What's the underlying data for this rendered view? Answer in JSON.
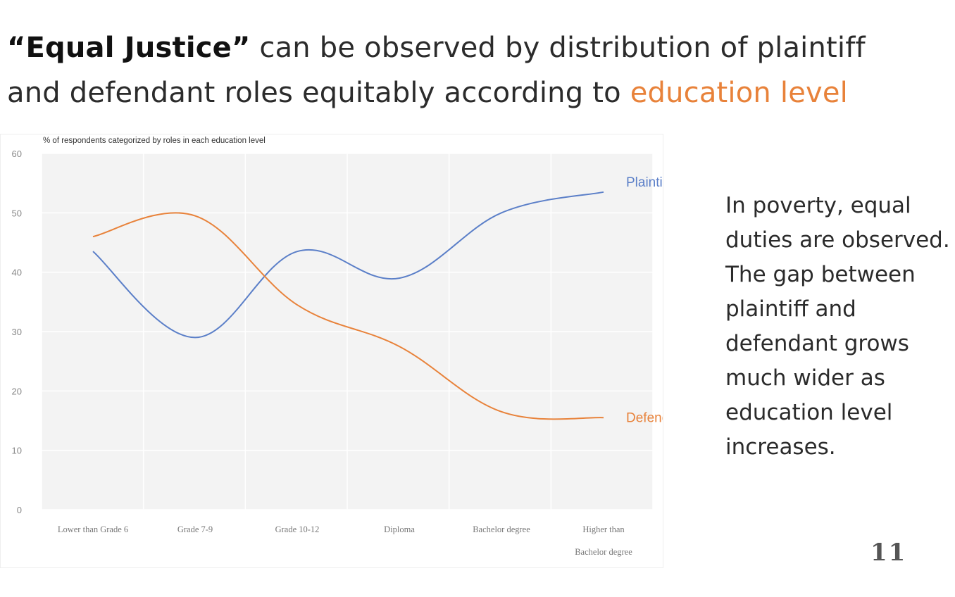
{
  "headline": {
    "part1": "“Equal Justice”",
    "part2": " can be observed by distribution of plaintiff and defendant roles equitably according to ",
    "part3": "education level"
  },
  "note": {
    "lines": [
      "In poverty, equal",
      "duties are observed.",
      "The gap between",
      "plaintiff and",
      "defendant grows",
      "much wider as",
      "education level",
      "increases."
    ]
  },
  "page_number": "11",
  "colors": {
    "plaintiff": "#5b7fc8",
    "defendant": "#e8823a",
    "accent": "#e8823a",
    "plot_bg": "#f3f3f3",
    "grid": "#ffffff"
  },
  "chart_data": {
    "type": "line",
    "title": "% of respondents categorized by roles in each education level",
    "xlabel": "",
    "ylabel": "",
    "ylim": [
      0,
      60
    ],
    "yticks": [
      0,
      10,
      20,
      30,
      40,
      50,
      60
    ],
    "grid": true,
    "smooth": true,
    "categories": [
      [
        "Lower than Grade 6"
      ],
      [
        "Grade 7-9"
      ],
      [
        "Grade 10-12"
      ],
      [
        "Diploma"
      ],
      [
        "Bachelor degree"
      ],
      [
        "Higher than",
        "Bachelor degree"
      ]
    ],
    "series": [
      {
        "name": "Plaintiff",
        "color": "#5b7fc8",
        "values": [
          43.5,
          29,
          43.5,
          39,
          50,
          53.5
        ]
      },
      {
        "name": "Defendant",
        "color": "#e8823a",
        "values": [
          46,
          49.5,
          34.5,
          27.5,
          16.5,
          15.5
        ]
      }
    ],
    "legend": "inline labels at line ends"
  }
}
